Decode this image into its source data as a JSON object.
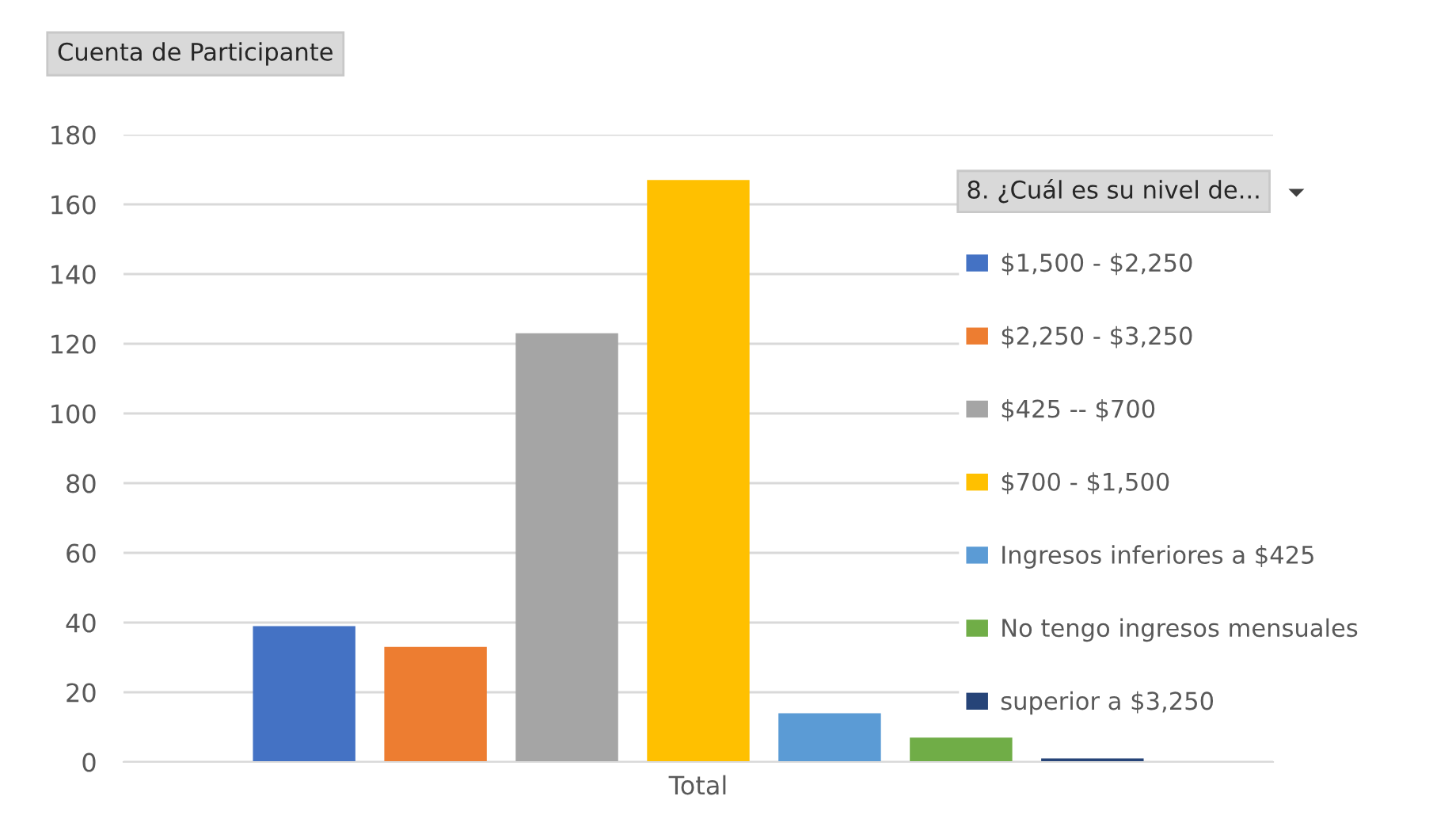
{
  "chart_data": {
    "type": "bar",
    "title": "Cuenta de Participante",
    "legend_title": "8. ¿Cuál es su nivel de...",
    "categories": [
      "Total"
    ],
    "series": [
      {
        "name": "$1,500 - $2,250",
        "color": "#4472c4",
        "values": [
          39
        ]
      },
      {
        "name": "$2,250 - $3,250",
        "color": "#ed7d31",
        "values": [
          33
        ]
      },
      {
        "name": "$425 -- $700",
        "color": "#a5a5a5",
        "values": [
          123
        ]
      },
      {
        "name": "$700 - $1,500",
        "color": "#ffc000",
        "values": [
          167
        ]
      },
      {
        "name": "Ingresos inferiores a $425",
        "color": "#5b9bd5",
        "values": [
          14
        ]
      },
      {
        "name": "No tengo ingresos mensuales",
        "color": "#70ad47",
        "values": [
          7
        ]
      },
      {
        "name": "superior a $3,250",
        "color": "#264478",
        "values": [
          1
        ]
      }
    ],
    "ylim": [
      0,
      180
    ],
    "yticks": [
      0,
      20,
      40,
      60,
      80,
      100,
      120,
      140,
      160,
      180
    ],
    "grid": "y",
    "legend": "right"
  }
}
